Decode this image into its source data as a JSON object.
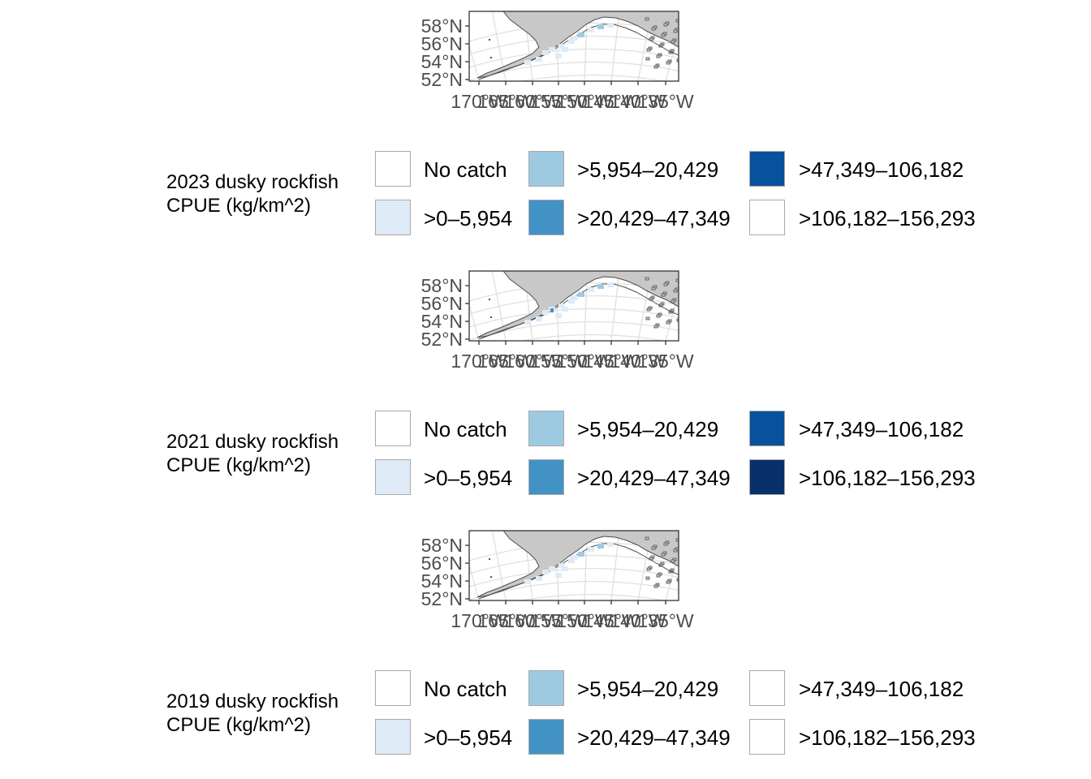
{
  "panels": [
    {
      "year": "2023",
      "legend_title_line1": "2023 dusky rockfish",
      "legend_title_line2": "CPUE (kg/km^2)",
      "legend": [
        {
          "label": "No catch",
          "color": "#ffffff"
        },
        {
          "label": ">0–5,954",
          "color": "#deebf7"
        },
        {
          "label": ">5,954–20,429",
          "color": "#9ecae1"
        },
        {
          "label": ">20,429–47,349",
          "color": "#4292c6"
        },
        {
          "label": ">47,349–106,182",
          "color": "#08519c"
        },
        {
          "label": ">106,182–156,293",
          "color": "#ffffff"
        }
      ]
    },
    {
      "year": "2021",
      "legend_title_line1": "2021 dusky rockfish",
      "legend_title_line2": "CPUE (kg/km^2)",
      "legend": [
        {
          "label": "No catch",
          "color": "#ffffff"
        },
        {
          "label": ">0–5,954",
          "color": "#deebf7"
        },
        {
          "label": ">5,954–20,429",
          "color": "#9ecae1"
        },
        {
          "label": ">20,429–47,349",
          "color": "#4292c6"
        },
        {
          "label": ">47,349–106,182",
          "color": "#08519c"
        },
        {
          "label": ">106,182–156,293",
          "color": "#08306b"
        }
      ]
    },
    {
      "year": "2019",
      "legend_title_line1": "2019 dusky rockfish",
      "legend_title_line2": "CPUE (kg/km^2)",
      "legend": [
        {
          "label": "No catch",
          "color": "#ffffff"
        },
        {
          "label": ">0–5,954",
          "color": "#deebf7"
        },
        {
          "label": ">5,954–20,429",
          "color": "#9ecae1"
        },
        {
          "label": ">20,429–47,349",
          "color": "#4292c6"
        },
        {
          "label": ">47,349–106,182",
          "color": "#ffffff"
        },
        {
          "label": ">106,182–156,293",
          "color": "#ffffff"
        }
      ]
    }
  ],
  "map": {
    "y_ticks": [
      "58°N",
      "56°N",
      "54°N",
      "52°N"
    ],
    "x_ticks": [
      "170°W",
      "165°W",
      "160°W",
      "155°W",
      "150°W",
      "145°W",
      "140°W",
      "135°W"
    ],
    "land_color": "#c8c8c8",
    "coast_color": "#4d4d4d",
    "grid_color": "#e0e0e0"
  }
}
